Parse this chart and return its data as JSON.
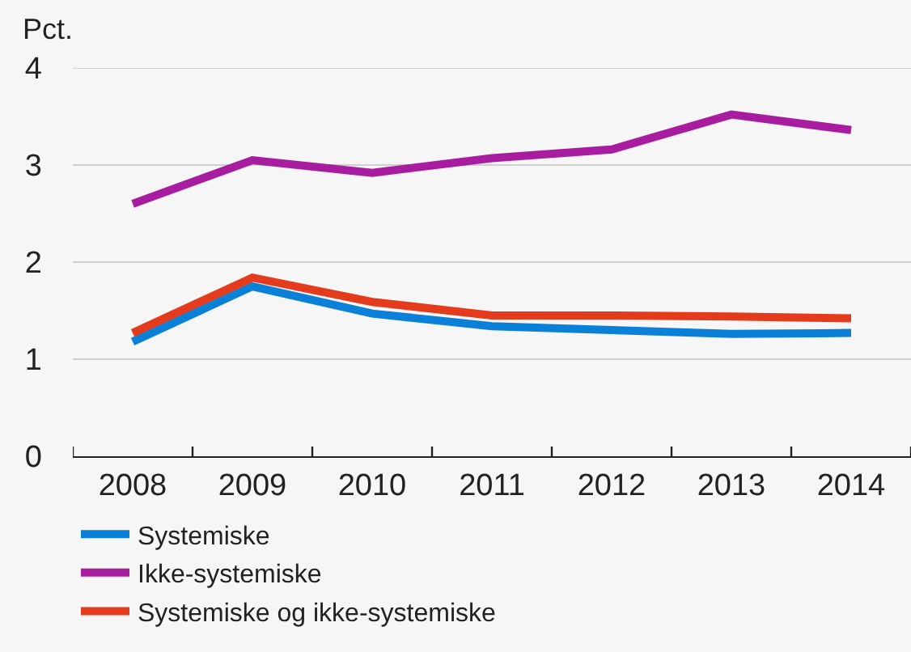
{
  "chart_data": {
    "type": "line",
    "ylabel": "Pct.",
    "categories": [
      "2008",
      "2009",
      "2010",
      "2011",
      "2012",
      "2013",
      "2014"
    ],
    "ylim": [
      0,
      4
    ],
    "yticks": [
      0,
      1,
      2,
      3,
      4
    ],
    "grid": "y",
    "legend": "bottom",
    "marker": "none",
    "line_style": "solid",
    "series": [
      {
        "name": "Systemiske",
        "color": "#0a80d8",
        "values": [
          1.18,
          1.75,
          1.47,
          1.34,
          1.3,
          1.26,
          1.27
        ]
      },
      {
        "name": "Ikke-systemiske",
        "color": "#a81c9f",
        "values": [
          2.6,
          3.05,
          2.92,
          3.07,
          3.16,
          3.52,
          3.36
        ]
      },
      {
        "name": "Systemiske og ikke-systemiske",
        "color": "#e33b1c",
        "values": [
          1.27,
          1.84,
          1.59,
          1.45,
          1.45,
          1.44,
          1.42
        ]
      }
    ]
  }
}
